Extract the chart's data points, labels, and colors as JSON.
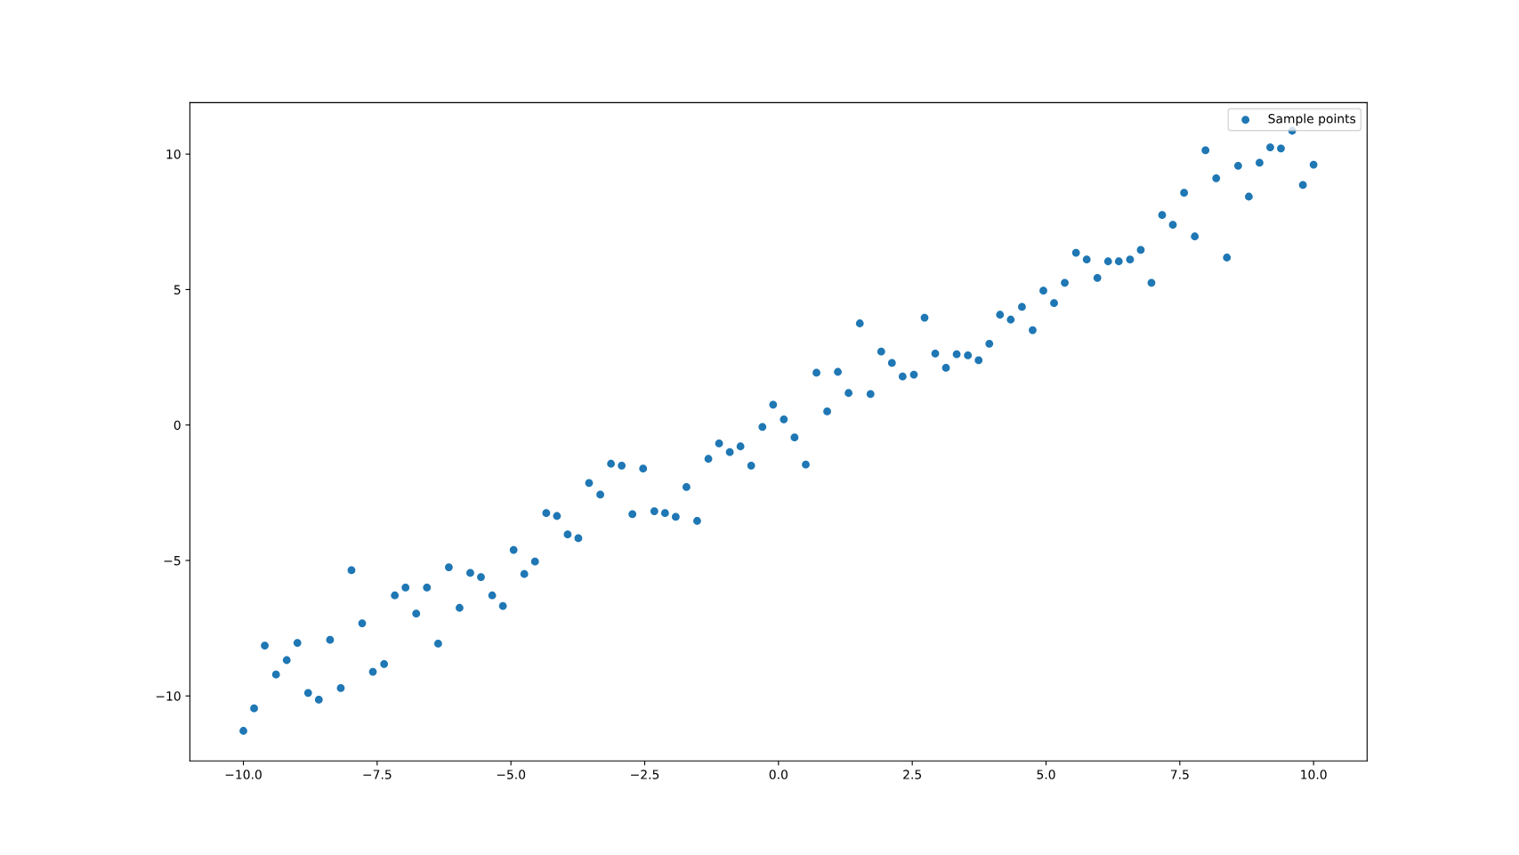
{
  "chart_data": {
    "type": "scatter",
    "legend": "top right",
    "grid": false,
    "marker": "circle",
    "xlim": [
      -11,
      11
    ],
    "ylim": [
      -12.4,
      11.9
    ],
    "xticks": [
      {
        "value": -10,
        "label": "−10.0"
      },
      {
        "value": -7.5,
        "label": "−7.5"
      },
      {
        "value": -5,
        "label": "−5.0"
      },
      {
        "value": -2.5,
        "label": "−2.5"
      },
      {
        "value": 0,
        "label": "0.0"
      },
      {
        "value": 2.5,
        "label": "2.5"
      },
      {
        "value": 5,
        "label": "5.0"
      },
      {
        "value": 7.5,
        "label": "7.5"
      },
      {
        "value": 10,
        "label": "10.0"
      }
    ],
    "yticks": [
      {
        "value": -10,
        "label": "−10"
      },
      {
        "value": -5,
        "label": "−5"
      },
      0,
      5,
      10
    ],
    "x": [
      -10.0,
      -9.8,
      -9.6,
      -9.39,
      -9.19,
      -8.99,
      -8.79,
      -8.59,
      -8.38,
      -8.18,
      -7.98,
      -7.78,
      -7.58,
      -7.37,
      -7.17,
      -6.97,
      -6.77,
      -6.57,
      -6.36,
      -6.16,
      -5.96,
      -5.76,
      -5.56,
      -5.35,
      -5.15,
      -4.95,
      -4.75,
      -4.55,
      -4.34,
      -4.14,
      -3.94,
      -3.74,
      -3.54,
      -3.33,
      -3.13,
      -2.93,
      -2.73,
      -2.53,
      -2.32,
      -2.12,
      -1.92,
      -1.72,
      -1.52,
      -1.31,
      -1.11,
      -0.91,
      -0.71,
      -0.51,
      -0.3,
      -0.1,
      0.1,
      0.3,
      0.51,
      0.71,
      0.91,
      1.11,
      1.31,
      1.52,
      1.72,
      1.92,
      2.12,
      2.32,
      2.53,
      2.73,
      2.93,
      3.13,
      3.33,
      3.54,
      3.74,
      3.94,
      4.14,
      4.34,
      4.55,
      4.75,
      4.95,
      5.15,
      5.35,
      5.56,
      5.76,
      5.96,
      6.16,
      6.36,
      6.57,
      6.77,
      6.97,
      7.17,
      7.37,
      7.58,
      7.78,
      7.98,
      8.18,
      8.38,
      8.59,
      8.79,
      8.99,
      9.19,
      9.39,
      9.6,
      9.8,
      10.0
    ],
    "series": [
      {
        "name": "Sample points",
        "color": "#1f77b4",
        "values": [
          -11.29,
          -10.46,
          -8.14,
          -9.21,
          -8.68,
          -8.04,
          -9.89,
          -10.14,
          -7.93,
          -9.71,
          -5.36,
          -7.32,
          -9.11,
          -8.82,
          -6.29,
          -6.0,
          -6.96,
          -6.0,
          -8.07,
          -5.25,
          -6.75,
          -5.46,
          -5.61,
          -6.29,
          -6.68,
          -4.61,
          -5.5,
          -5.04,
          -3.25,
          -3.36,
          -4.04,
          -4.18,
          -2.14,
          -2.57,
          -1.43,
          -1.5,
          -3.29,
          -1.61,
          -3.18,
          -3.25,
          -3.39,
          -2.29,
          -3.54,
          -1.25,
          -0.68,
          -1.0,
          -0.79,
          -1.5,
          -0.07,
          0.75,
          0.21,
          -0.46,
          -1.46,
          1.93,
          0.5,
          1.96,
          1.18,
          3.75,
          1.14,
          2.71,
          2.29,
          1.79,
          1.86,
          3.96,
          2.64,
          2.11,
          2.61,
          2.57,
          2.39,
          3.0,
          4.07,
          3.89,
          4.36,
          3.5,
          4.96,
          4.5,
          5.25,
          6.36,
          6.11,
          5.43,
          6.04,
          6.04,
          6.11,
          6.46,
          5.25,
          7.75,
          7.39,
          8.57,
          6.96,
          10.14,
          9.11,
          6.18,
          9.57,
          8.43,
          9.68,
          10.25,
          10.21,
          10.86,
          8.86,
          9.61
        ]
      }
    ]
  }
}
